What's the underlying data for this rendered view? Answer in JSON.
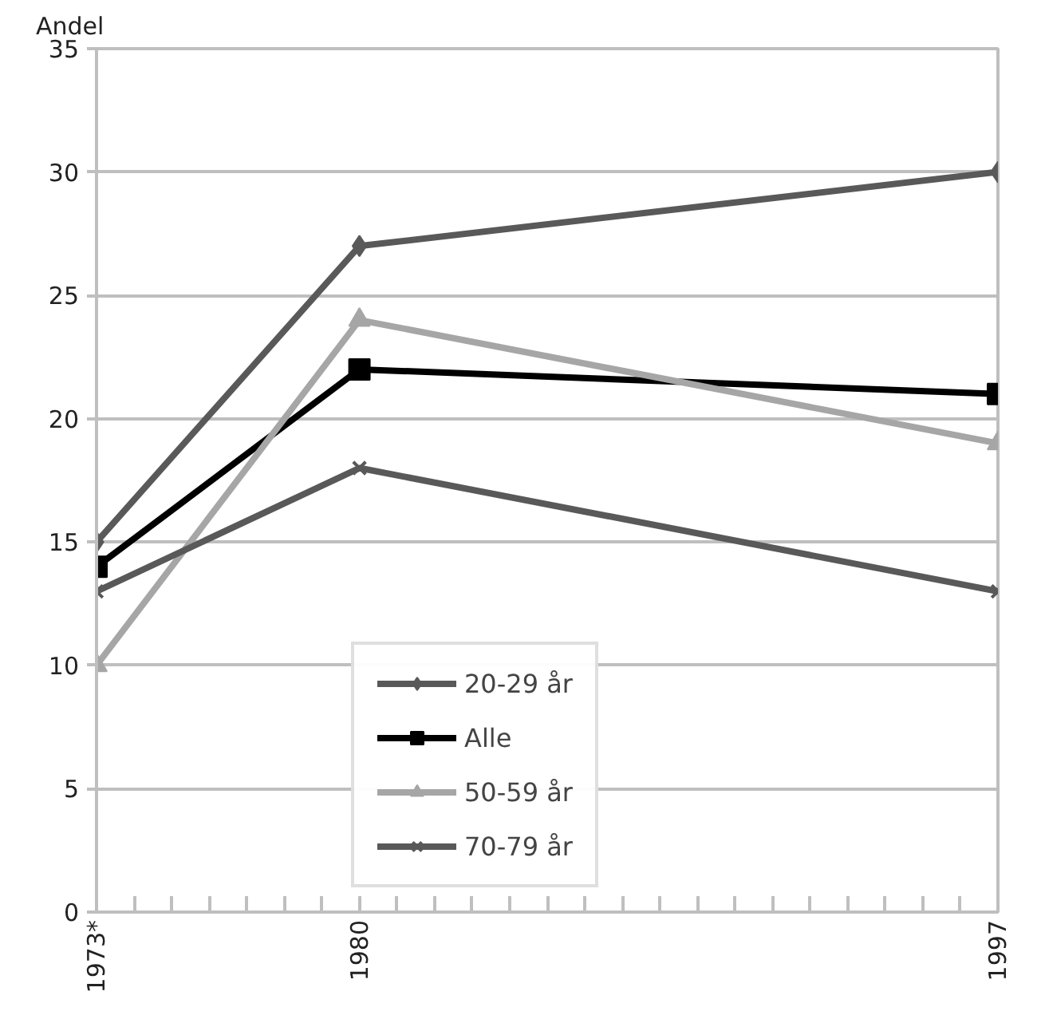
{
  "chart_data": {
    "type": "line",
    "ylabel": "Andel",
    "x": [
      1973,
      1980,
      1997
    ],
    "xlim": [
      1973,
      1997
    ],
    "xticks": [
      {
        "value": 1973,
        "label": "1973*"
      },
      {
        "value": 1974,
        "label": null
      },
      {
        "value": 1975,
        "label": null
      },
      {
        "value": 1976,
        "label": null
      },
      {
        "value": 1977,
        "label": null
      },
      {
        "value": 1978,
        "label": null
      },
      {
        "value": 1979,
        "label": null
      },
      1980,
      {
        "value": 1981,
        "label": null
      },
      {
        "value": 1982,
        "label": null
      },
      {
        "value": 1983,
        "label": null
      },
      {
        "value": 1984,
        "label": null
      },
      {
        "value": 1985,
        "label": null
      },
      {
        "value": 1986,
        "label": null
      },
      {
        "value": 1987,
        "label": null
      },
      {
        "value": 1988,
        "label": null
      },
      {
        "value": 1989,
        "label": null
      },
      {
        "value": 1990,
        "label": null
      },
      {
        "value": 1991,
        "label": null
      },
      {
        "value": 1992,
        "label": null
      },
      {
        "value": 1993,
        "label": null
      },
      {
        "value": 1994,
        "label": null
      },
      {
        "value": 1995,
        "label": null
      },
      {
        "value": 1996,
        "label": null
      },
      1997
    ],
    "ylim": [
      0,
      35
    ],
    "yticks": [
      0,
      5,
      10,
      15,
      20,
      25,
      30,
      35
    ],
    "grid": "y",
    "legend": "bottom",
    "line_style": "solid",
    "series": [
      {
        "name": "20-29 år",
        "color": "#595959",
        "marker": "diamond",
        "values": [
          15,
          27,
          30
        ]
      },
      {
        "name": "Alle",
        "color": "#000000",
        "marker": "square",
        "values": [
          14,
          22,
          21
        ]
      },
      {
        "name": "50-59 år",
        "color": "#a6a6a6",
        "marker": "triangle",
        "values": [
          10,
          24,
          19
        ]
      },
      {
        "name": "70-79 år",
        "color": "#595959",
        "marker": "x",
        "values": [
          13,
          18,
          13
        ]
      }
    ]
  }
}
